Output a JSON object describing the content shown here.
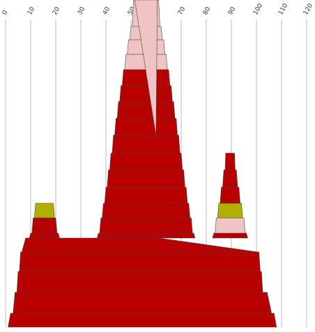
{
  "chart_data": {
    "type": "area",
    "title": "",
    "xlabel": "",
    "ylabel": "",
    "x_axis_position": "top",
    "xlim": [
      0,
      120
    ],
    "x_ticks": [
      "0",
      "10",
      "20",
      "30",
      "40",
      "50",
      "60",
      "70",
      "80",
      "90",
      "100",
      "110",
      "120"
    ],
    "grid": "vertical",
    "legend": "none",
    "stack_direction": "bottom-up",
    "colors": {
      "red": "#b80000",
      "pink": "#f0c4c4",
      "olive": "#b0b000",
      "grid": "#b8b8b8",
      "edge": "#444444"
    },
    "layers": [
      {
        "left": 1,
        "right": 108,
        "color": "red"
      },
      {
        "left": 3,
        "right": 106,
        "color": "red"
      },
      {
        "left": 4.5,
        "right": 102.5,
        "color": "red"
      },
      {
        "left": 5.5,
        "right": 101.5,
        "color": "red"
      },
      {
        "left": 6.5,
        "right": 100.5,
        "color": "red"
      },
      {
        "segments": [
          {
            "left": 9.5,
            "right": 21.5,
            "color": "red"
          },
          {
            "left": 36.5,
            "right": 75.5,
            "color": "red"
          },
          {
            "left": 82.5,
            "right": 96.5,
            "color": "red"
          }
        ]
      },
      {
        "segments": [
          {
            "left": 10.5,
            "right": 20.5,
            "color": "red"
          },
          {
            "left": 37.5,
            "right": 74.5,
            "color": "red"
          },
          {
            "left": 83.5,
            "right": 95.5,
            "color": "pink"
          }
        ]
      },
      {
        "segments": [
          {
            "left": 11.5,
            "right": 19.5,
            "color": "olive"
          },
          {
            "left": 38.5,
            "right": 73.5,
            "color": "red"
          },
          {
            "left": 84.5,
            "right": 94.5,
            "color": "olive"
          }
        ]
      },
      {
        "segments": [
          {
            "left": 39.5,
            "right": 72.5,
            "color": "red"
          },
          {
            "left": 85.5,
            "right": 93.5,
            "color": "red"
          }
        ]
      },
      {
        "segments": [
          {
            "left": 40.5,
            "right": 71.5,
            "color": "red"
          },
          {
            "left": 86.5,
            "right": 92.5,
            "color": "red"
          }
        ]
      },
      {
        "segments": [
          {
            "left": 41.5,
            "right": 70.5,
            "color": "red"
          },
          {
            "left": 87.5,
            "right": 91.5,
            "color": "red"
          }
        ]
      },
      {
        "left": 42.5,
        "right": 69.5,
        "color": "red"
      },
      {
        "left": 43.5,
        "right": 68.5,
        "color": "red"
      },
      {
        "left": 44.5,
        "right": 67.5,
        "color": "red"
      },
      {
        "left": 45.5,
        "right": 66.5,
        "color": "red"
      },
      {
        "left": 46.5,
        "right": 65.5,
        "color": "red"
      },
      {
        "left": 47.5,
        "right": 64.5,
        "color": "pink"
      },
      {
        "left": 48.5,
        "right": 63.5,
        "color": "pink"
      },
      {
        "left": 49.5,
        "right": 62.5,
        "color": "pink"
      },
      {
        "left": 50.5,
        "right": 61.5,
        "color": "pink"
      },
      {
        "left": 51.5,
        "right": 60.5,
        "color": "pink"
      }
    ]
  }
}
